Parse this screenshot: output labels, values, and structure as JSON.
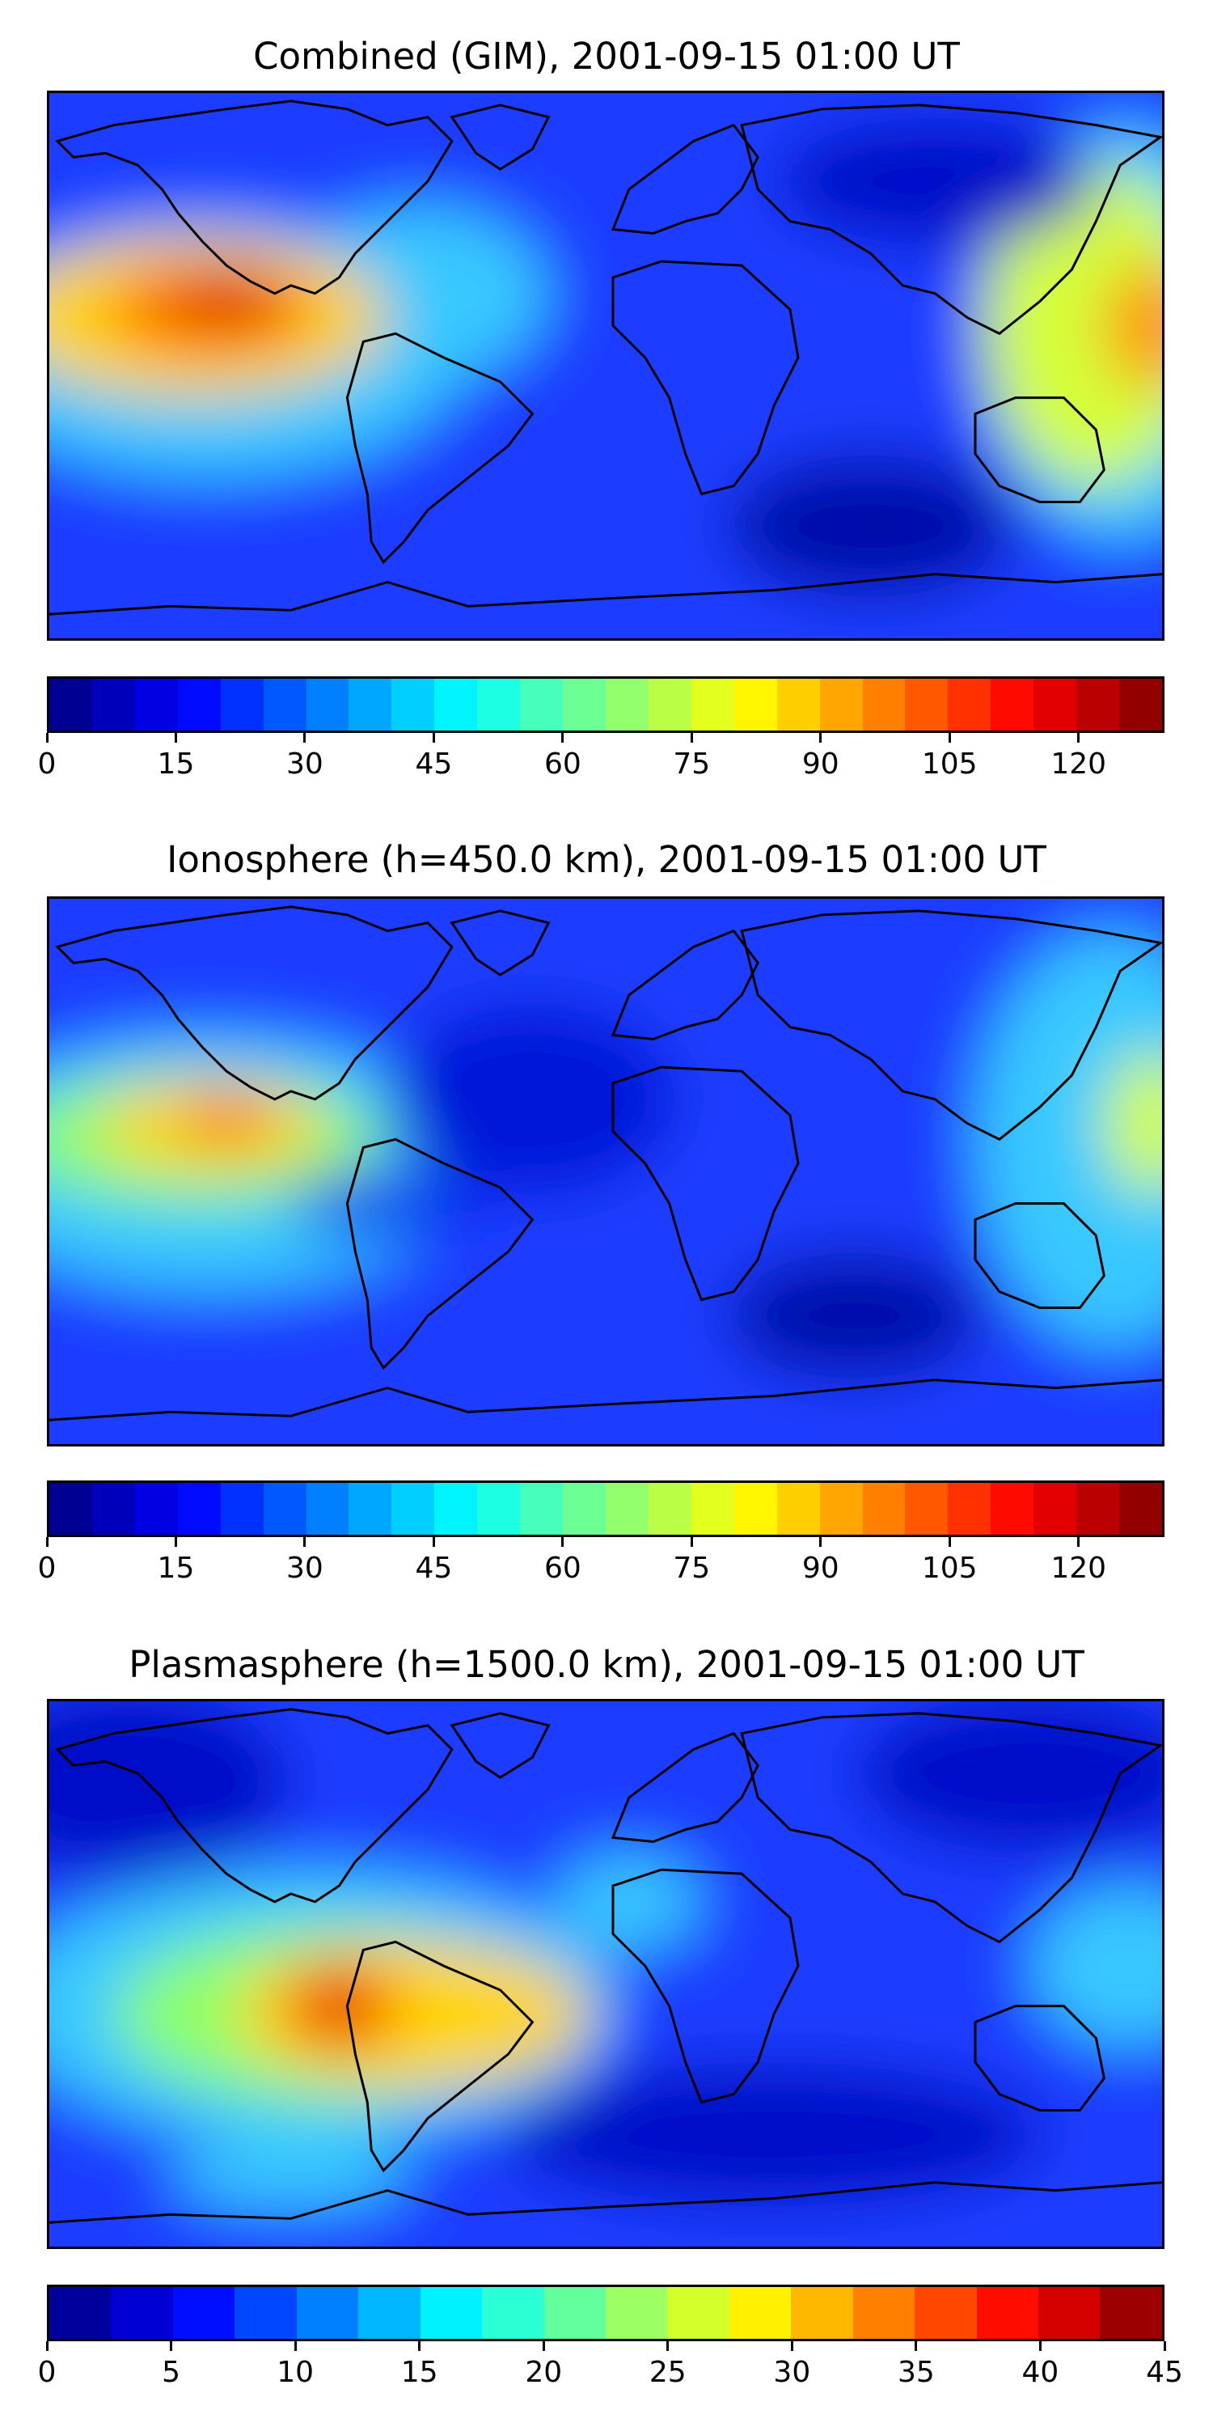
{
  "panels": [
    {
      "title": "Combined (GIM), 2001-09-15 01:00 UT",
      "colorbar": {
        "ticks": [
          "0",
          "15",
          "30",
          "45",
          "60",
          "75",
          "90",
          "105",
          "120"
        ],
        "tick_values": [
          0,
          15,
          30,
          45,
          60,
          75,
          90,
          105,
          120
        ],
        "min": 0,
        "max": 130,
        "levels": 26
      }
    },
    {
      "title": "Ionosphere  (h=450.0 km), 2001-09-15 01:00 UT",
      "colorbar": {
        "ticks": [
          "0",
          "15",
          "30",
          "45",
          "60",
          "75",
          "90",
          "105",
          "120"
        ],
        "tick_values": [
          0,
          15,
          30,
          45,
          60,
          75,
          90,
          105,
          120
        ],
        "min": 0,
        "max": 130,
        "levels": 26
      }
    },
    {
      "title": "Plasmasphere (h=1500.0 km), 2001-09-15 01:00 UT",
      "colorbar": {
        "ticks": [
          "0",
          "5",
          "10",
          "15",
          "20",
          "25",
          "30",
          "35",
          "40",
          "45"
        ],
        "tick_values": [
          0,
          5,
          10,
          15,
          20,
          25,
          30,
          35,
          40,
          45
        ],
        "min": 0,
        "max": 45,
        "levels": 18
      }
    }
  ],
  "colormap": "jet",
  "coastline_color": "#000000"
}
